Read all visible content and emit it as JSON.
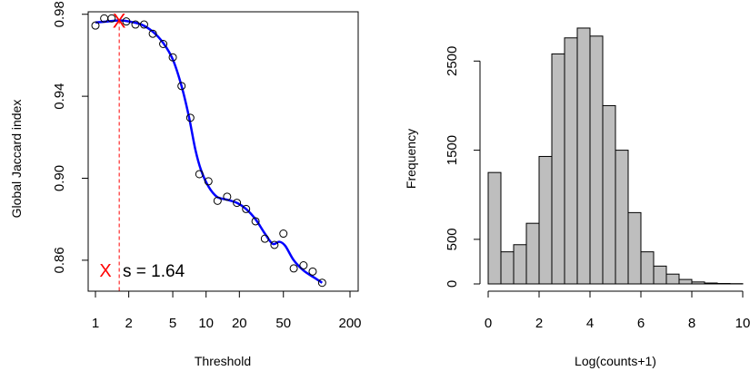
{
  "colors": {
    "curve": "#0000FF",
    "marker": "#FF0000",
    "bar_fill": "#BEBEBE",
    "axis": "#000000"
  },
  "chart_data": [
    {
      "type": "scatter",
      "xlabel": "Threshold",
      "ylabel": "Global Jaccard index",
      "x_scale": "log",
      "xlim": [
        1,
        200
      ],
      "ylim": [
        0.848,
        0.979
      ],
      "x_ticks": [
        1,
        2,
        5,
        10,
        20,
        50,
        200
      ],
      "x_tick_labels": [
        "1",
        "2",
        "5",
        "10",
        "20",
        "50",
        "200"
      ],
      "y_ticks": [
        0.86,
        0.9,
        0.94,
        0.98
      ],
      "y_tick_labels": [
        "0.86",
        "0.90",
        "0.94",
        "0.98"
      ],
      "points": [
        {
          "x": 1.0,
          "y": 0.9745
        },
        {
          "x": 1.2,
          "y": 0.978
        },
        {
          "x": 1.4,
          "y": 0.978
        },
        {
          "x": 1.9,
          "y": 0.9765
        },
        {
          "x": 2.3,
          "y": 0.975
        },
        {
          "x": 2.75,
          "y": 0.975
        },
        {
          "x": 3.3,
          "y": 0.9705
        },
        {
          "x": 4.1,
          "y": 0.9655
        },
        {
          "x": 5.0,
          "y": 0.959
        },
        {
          "x": 6.0,
          "y": 0.945
        },
        {
          "x": 7.2,
          "y": 0.9295
        },
        {
          "x": 8.7,
          "y": 0.902
        },
        {
          "x": 10.5,
          "y": 0.8985
        },
        {
          "x": 12.7,
          "y": 0.889
        },
        {
          "x": 15.5,
          "y": 0.891
        },
        {
          "x": 19.0,
          "y": 0.888
        },
        {
          "x": 23.0,
          "y": 0.885
        },
        {
          "x": 28.0,
          "y": 0.879
        },
        {
          "x": 34.0,
          "y": 0.8705
        },
        {
          "x": 41.5,
          "y": 0.8675
        },
        {
          "x": 50.0,
          "y": 0.873
        },
        {
          "x": 62.0,
          "y": 0.856
        },
        {
          "x": 76.0,
          "y": 0.8575
        },
        {
          "x": 92.0,
          "y": 0.8545
        },
        {
          "x": 112.0,
          "y": 0.849
        }
      ],
      "fit_curve": [
        {
          "x": 1.0,
          "y": 0.976
        },
        {
          "x": 1.3,
          "y": 0.9765
        },
        {
          "x": 1.64,
          "y": 0.977
        },
        {
          "x": 2.0,
          "y": 0.9765
        },
        {
          "x": 2.6,
          "y": 0.975
        },
        {
          "x": 3.3,
          "y": 0.9715
        },
        {
          "x": 4.1,
          "y": 0.966
        },
        {
          "x": 5.0,
          "y": 0.958
        },
        {
          "x": 6.0,
          "y": 0.945
        },
        {
          "x": 7.0,
          "y": 0.93
        },
        {
          "x": 8.0,
          "y": 0.914
        },
        {
          "x": 9.0,
          "y": 0.904
        },
        {
          "x": 10.5,
          "y": 0.896
        },
        {
          "x": 12.5,
          "y": 0.891
        },
        {
          "x": 15.5,
          "y": 0.8895
        },
        {
          "x": 19.0,
          "y": 0.888
        },
        {
          "x": 23.0,
          "y": 0.885
        },
        {
          "x": 28.0,
          "y": 0.88
        },
        {
          "x": 34.0,
          "y": 0.873
        },
        {
          "x": 40.0,
          "y": 0.868
        },
        {
          "x": 46.0,
          "y": 0.869
        },
        {
          "x": 52.0,
          "y": 0.867
        },
        {
          "x": 62.0,
          "y": 0.86
        },
        {
          "x": 76.0,
          "y": 0.855
        },
        {
          "x": 95.0,
          "y": 0.8515
        },
        {
          "x": 112.0,
          "y": 0.849
        }
      ],
      "optimum": {
        "x": 1.64,
        "y": 0.977
      },
      "legend": {
        "symbol": "X",
        "text": "s = 1.64",
        "position": "bottom-left"
      }
    },
    {
      "type": "bar",
      "xlabel": "Log(counts+1)",
      "ylabel": "Frequency",
      "xlim": [
        0,
        10
      ],
      "ylim": [
        0,
        2900
      ],
      "x_ticks": [
        0,
        2,
        4,
        6,
        8,
        10
      ],
      "x_tick_labels": [
        "0",
        "2",
        "4",
        "6",
        "8",
        "10"
      ],
      "y_ticks": [
        0,
        500,
        1500,
        2500
      ],
      "y_tick_labels": [
        "0",
        "500",
        "1500",
        "2500"
      ],
      "bin_width": 0.5,
      "bins": [
        {
          "start": 0.0,
          "value": 1250
        },
        {
          "start": 0.5,
          "value": 360
        },
        {
          "start": 1.0,
          "value": 440
        },
        {
          "start": 1.5,
          "value": 680
        },
        {
          "start": 2.0,
          "value": 1430
        },
        {
          "start": 2.5,
          "value": 2580
        },
        {
          "start": 3.0,
          "value": 2760
        },
        {
          "start": 3.5,
          "value": 2870
        },
        {
          "start": 4.0,
          "value": 2780
        },
        {
          "start": 4.5,
          "value": 2000
        },
        {
          "start": 5.0,
          "value": 1500
        },
        {
          "start": 5.5,
          "value": 800
        },
        {
          "start": 6.0,
          "value": 360
        },
        {
          "start": 6.5,
          "value": 200
        },
        {
          "start": 7.0,
          "value": 110
        },
        {
          "start": 7.5,
          "value": 50
        },
        {
          "start": 8.0,
          "value": 22
        },
        {
          "start": 8.5,
          "value": 10
        },
        {
          "start": 9.0,
          "value": 5
        },
        {
          "start": 9.5,
          "value": 3
        }
      ]
    }
  ]
}
